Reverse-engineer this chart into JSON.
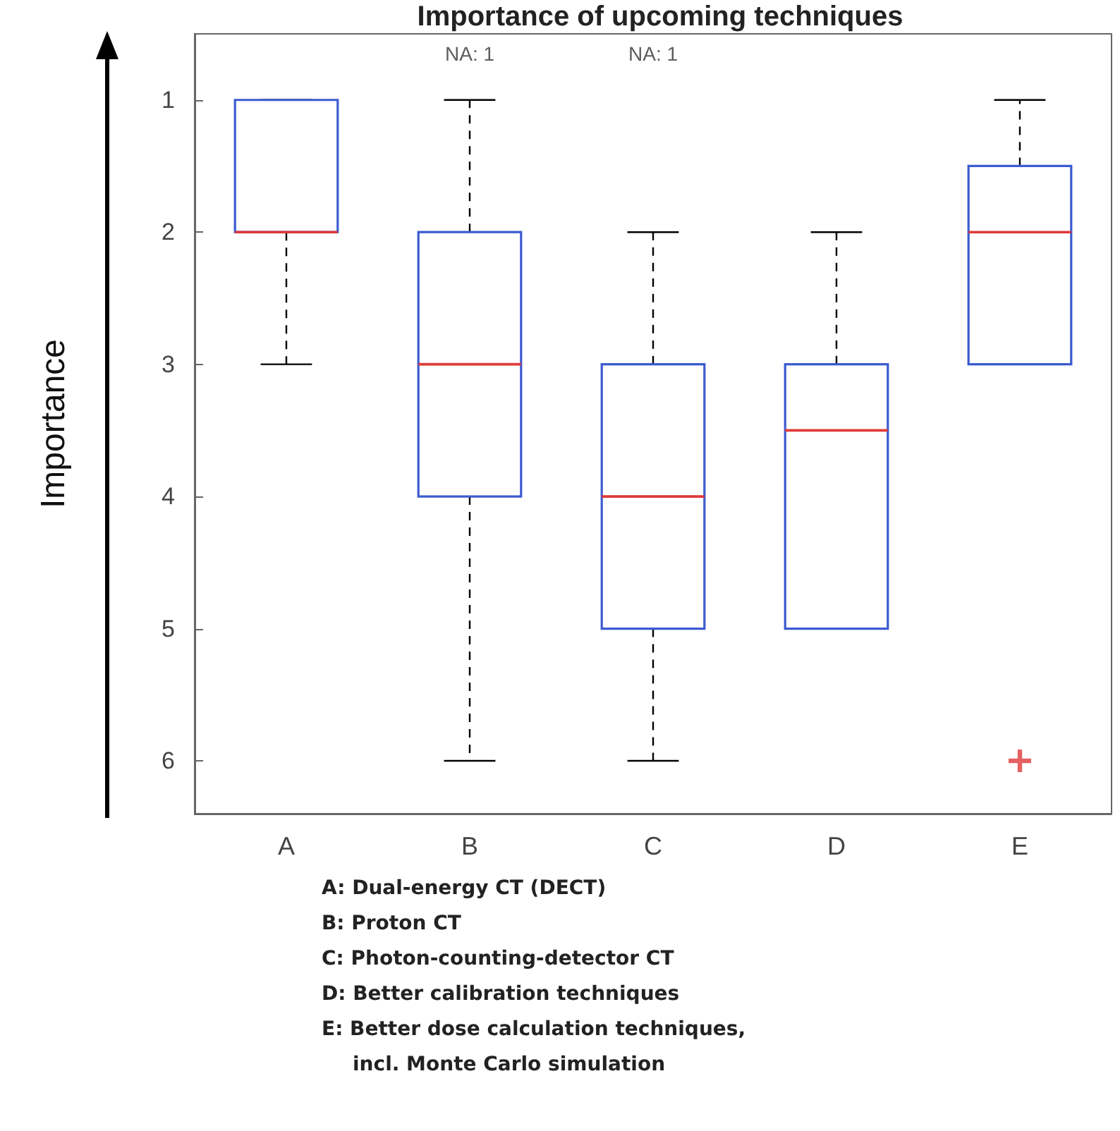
{
  "chart_data": {
    "type": "box",
    "title": "Importance of upcoming techniques",
    "ylabel": "Importance",
    "categories": [
      "A",
      "B",
      "C",
      "D",
      "E"
    ],
    "ylim": [
      6.4,
      0.5
    ],
    "yticks": [
      1,
      2,
      3,
      4,
      5,
      6
    ],
    "grid": false,
    "series": [
      {
        "color": "#3b5bd0",
        "boxes": [
          {
            "low": 1,
            "q1": 1,
            "median": 2,
            "q3": 2,
            "high": 3
          },
          {
            "low": 1,
            "q1": 2,
            "median": 3,
            "q3": 4,
            "high": 6
          },
          {
            "low": 2,
            "q1": 3,
            "median": 4,
            "q3": 5,
            "high": 6
          },
          {
            "low": 2,
            "q1": 3,
            "median": 3.5,
            "q3": 5,
            "high": 5
          },
          {
            "low": 1,
            "q1": 1.5,
            "median": 2,
            "q3": 3,
            "high": 3,
            "outliers": [
              6
            ]
          }
        ]
      }
    ],
    "annotations": [
      "NA: 1",
      "NA: 1",
      "A: Dual-energy CT (DECT)",
      "B: Proton CT",
      "C: Photon-counting-detector CT",
      "D: Better calibration techniques",
      "E: Better dose calculation techniques, incl. Monte Carlo simulation"
    ]
  }
}
